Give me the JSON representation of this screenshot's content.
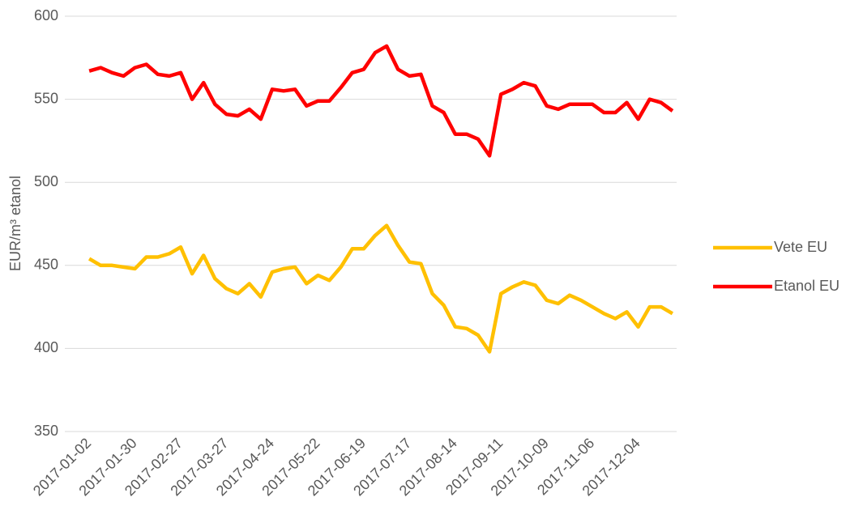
{
  "chart_data": {
    "type": "line",
    "y_label": "EUR/m³ etanol",
    "categories": [
      "2017-01-02",
      null,
      null,
      null,
      "2017-01-30",
      null,
      null,
      null,
      "2017-02-27",
      null,
      null,
      null,
      "2017-03-27",
      null,
      null,
      null,
      "2017-04-24",
      null,
      null,
      null,
      "2017-05-22",
      null,
      null,
      null,
      "2017-06-19",
      null,
      null,
      null,
      "2017-07-17",
      null,
      null,
      null,
      "2017-08-14",
      null,
      null,
      null,
      "2017-09-11",
      null,
      null,
      null,
      "2017-10-09",
      null,
      null,
      null,
      "2017-11-06",
      null,
      null,
      null,
      "2017-12-04",
      null,
      null,
      null
    ],
    "series": [
      {
        "name": "Vete EU",
        "color": "#ffc000",
        "values": [
          454,
          450,
          450,
          449,
          448,
          455,
          455,
          457,
          461,
          445,
          456,
          442,
          436,
          433,
          439,
          431,
          446,
          448,
          449,
          439,
          444,
          441,
          449,
          460,
          460,
          468,
          474,
          462,
          452,
          451,
          433,
          426,
          413,
          412,
          408,
          398,
          433,
          437,
          440,
          438,
          429,
          427,
          432,
          429,
          425,
          421,
          418,
          422,
          413,
          425,
          425,
          421
        ]
      },
      {
        "name": "Etanol EU",
        "color": "#ff0000",
        "values": [
          567,
          569,
          566,
          564,
          569,
          571,
          565,
          564,
          566,
          550,
          560,
          547,
          541,
          540,
          544,
          538,
          556,
          555,
          556,
          546,
          549,
          549,
          557,
          566,
          568,
          578,
          582,
          568,
          564,
          565,
          546,
          542,
          529,
          529,
          526,
          516,
          553,
          556,
          560,
          558,
          546,
          544,
          547,
          547,
          547,
          542,
          542,
          548,
          538,
          550,
          548,
          543
        ]
      }
    ],
    "ylim": [
      350,
      600
    ],
    "yticks": [
      350,
      400,
      450,
      500,
      550,
      600
    ],
    "grid": true,
    "legend": "right"
  }
}
